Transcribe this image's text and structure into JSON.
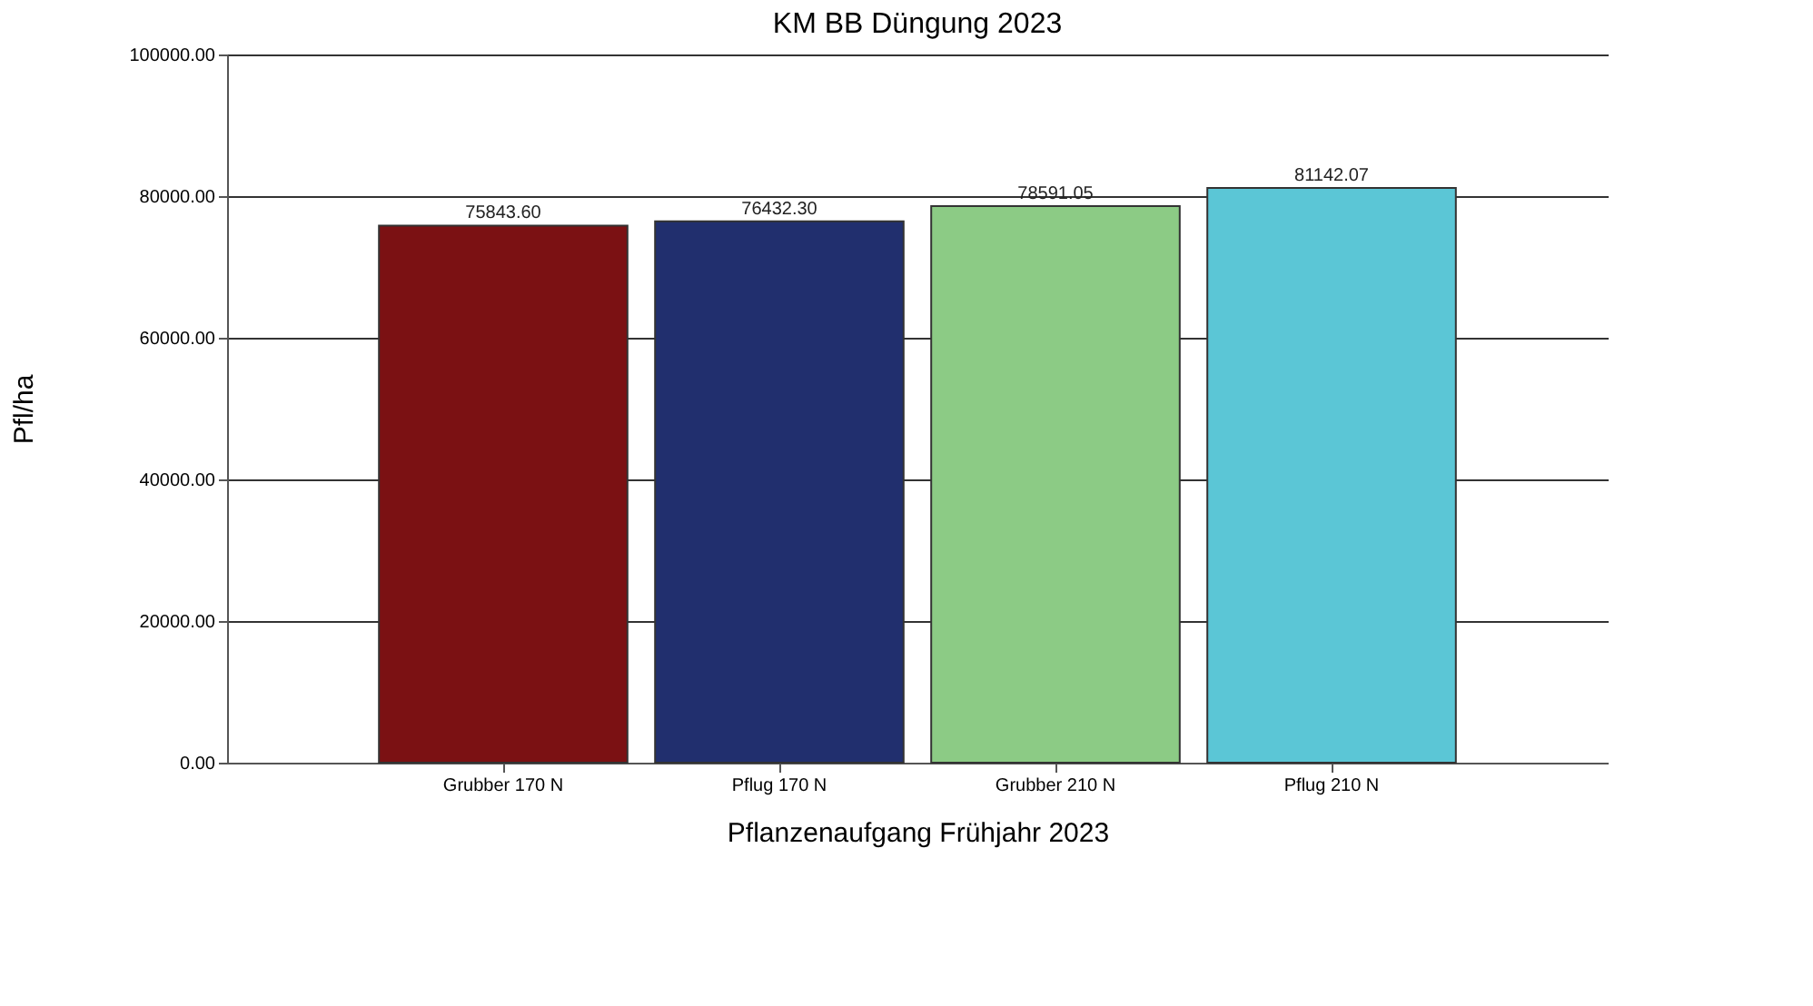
{
  "chart_data": {
    "type": "bar",
    "title": "KM BB Düngung 2023",
    "xlabel": "Pflanzenaufgang Frühjahr 2023",
    "ylabel": "Pfl/ha",
    "categories": [
      "Grubber 170 N",
      "Pflug 170 N",
      "Grubber 210 N",
      "Pflug 210 N"
    ],
    "values": [
      75843.6,
      76432.3,
      78591.05,
      81142.07
    ],
    "colors": [
      "#7b1113",
      "#212f6e",
      "#8ccb85",
      "#5bc6d6"
    ],
    "value_labels": [
      "75843.60",
      "76432.30",
      "78591.05",
      "81142.07"
    ],
    "ylim": [
      0,
      100000
    ],
    "yticks": [
      {
        "value": 0,
        "label": "0.00"
      },
      {
        "value": 20000,
        "label": "20000.00"
      },
      {
        "value": 40000,
        "label": "40000.00"
      },
      {
        "value": 60000,
        "label": "60000.00"
      },
      {
        "value": 80000,
        "label": "80000.00"
      },
      {
        "value": 100000,
        "label": "100000.00"
      }
    ],
    "grid": "y"
  }
}
